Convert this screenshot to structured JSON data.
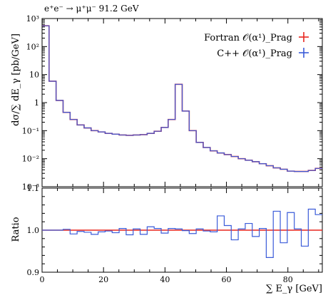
{
  "chart_data": {
    "type": "line",
    "title": "e⁺e⁻ → μ⁺μ⁻ 91.2 GeV",
    "xlabel": "∑ E_γ [GeV]",
    "ylabel": "dσ/∑ dE_γ [pb/GeV]",
    "ratio_ylabel": "Ratio",
    "xlim": [
      0,
      91.2
    ],
    "ylim": [
      0.001,
      1000
    ],
    "ylog": true,
    "ratio_ylim": [
      0.9,
      1.1
    ],
    "x_ticks": [
      "0",
      "20",
      "40",
      "60",
      "80"
    ],
    "y_ticks": [
      "10⁻³",
      "10⁻²",
      "10⁻¹",
      "1",
      "10",
      "10²",
      "10³"
    ],
    "ratio_ticks": [
      "0.9",
      "1.0",
      "1.1"
    ],
    "legend_position": "top-right",
    "bin_edges": [
      0,
      2.28,
      4.56,
      6.84,
      9.12,
      11.4,
      13.68,
      15.96,
      18.24,
      20.52,
      22.8,
      25.08,
      27.36,
      29.64,
      31.92,
      34.2,
      36.48,
      38.76,
      41.04,
      43.32,
      45.6,
      47.88,
      50.16,
      52.44,
      54.72,
      57.0,
      59.28,
      61.56,
      63.84,
      66.12,
      68.4,
      70.68,
      72.96,
      75.24,
      77.52,
      79.8,
      82.08,
      84.36,
      86.64,
      88.92,
      91.2
    ],
    "series": [
      {
        "name": "Fortran 𝒪(α¹)_Prag",
        "color": "#e8261f",
        "values": [
          550,
          5.8,
          1.2,
          0.45,
          0.25,
          0.16,
          0.125,
          0.1,
          0.09,
          0.08,
          0.075,
          0.07,
          0.068,
          0.07,
          0.072,
          0.08,
          0.095,
          0.13,
          0.25,
          4.5,
          0.5,
          0.1,
          0.038,
          0.025,
          0.019,
          0.016,
          0.014,
          0.012,
          0.01,
          0.0088,
          0.0078,
          0.0066,
          0.0056,
          0.0047,
          0.0042,
          0.0036,
          0.0035,
          0.0035,
          0.0038,
          0.0045
        ]
      },
      {
        "name": "C++ 𝒪(α¹)_Prag",
        "color": "#3a5bd9",
        "values": [
          550,
          5.8,
          1.2,
          0.45,
          0.25,
          0.16,
          0.125,
          0.1,
          0.09,
          0.08,
          0.075,
          0.07,
          0.068,
          0.07,
          0.072,
          0.08,
          0.095,
          0.13,
          0.25,
          4.5,
          0.5,
          0.1,
          0.038,
          0.025,
          0.019,
          0.016,
          0.014,
          0.012,
          0.01,
          0.0088,
          0.0078,
          0.0066,
          0.0056,
          0.0047,
          0.0042,
          0.0036,
          0.0035,
          0.0035,
          0.0038,
          0.0045
        ]
      }
    ],
    "ratio_values": [
      1.0,
      1.0,
      1.0,
      1.002,
      0.991,
      0.997,
      0.995,
      0.99,
      0.996,
      0.998,
      0.994,
      1.004,
      0.989,
      1.003,
      0.99,
      1.008,
      1.004,
      0.993,
      1.004,
      1.003,
      0.999,
      0.992,
      1.003,
      0.998,
      0.996,
      1.034,
      1.011,
      0.977,
      1.003,
      1.016,
      0.985,
      1.004,
      0.935,
      1.045,
      0.97,
      1.042,
      1.003,
      0.962,
      1.05,
      1.037
    ]
  }
}
